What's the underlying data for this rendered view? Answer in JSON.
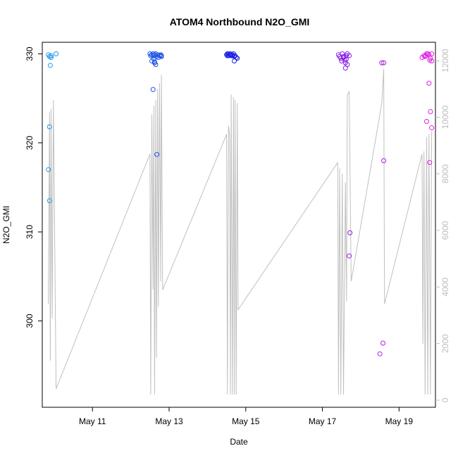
{
  "chart_data": {
    "type": "scatter",
    "title": "ATOM4 Northbound N2O_GMI",
    "xlabel": "Date",
    "ylabel": "N2O_GMI",
    "xlim": [
      9.69,
      19.95
    ],
    "ylim": [
      290.3,
      331.3
    ],
    "x_ticks": [
      {
        "x": 11,
        "label": "May 11"
      },
      {
        "x": 13,
        "label": "May 13"
      },
      {
        "x": 15,
        "label": "May 15"
      },
      {
        "x": 17,
        "label": "May 17"
      },
      {
        "x": 19,
        "label": "May 19"
      }
    ],
    "y_ticks": [
      300,
      310,
      320,
      330
    ],
    "y2lim": [
      -250,
      12650
    ],
    "y2_ticks": [
      0,
      2000,
      4000,
      6000,
      8000,
      10000,
      12000
    ],
    "colors": {
      "axis": "#000000",
      "right_axis": "#bdbdbd",
      "trace": "#c0c0c0",
      "points_start": "#1e9ee8",
      "points_mid": "#1a1ae6",
      "points_end": "#e61ee6"
    },
    "altitude_trace": [
      [
        9.85,
        3400
      ],
      [
        9.88,
        10200
      ],
      [
        9.9,
        1400
      ],
      [
        9.92,
        10300
      ],
      [
        9.95,
        2900
      ],
      [
        9.98,
        10600
      ],
      [
        10.05,
        400
      ],
      [
        12.5,
        8700
      ],
      [
        12.52,
        200
      ],
      [
        12.55,
        10100
      ],
      [
        12.58,
        3900
      ],
      [
        12.6,
        10400
      ],
      [
        12.62,
        200
      ],
      [
        12.65,
        10600
      ],
      [
        12.67,
        1500
      ],
      [
        12.7,
        11000
      ],
      [
        12.72,
        3300
      ],
      [
        12.75,
        11200
      ],
      [
        12.78,
        4200
      ],
      [
        12.8,
        11500
      ],
      [
        12.83,
        3900
      ],
      [
        14.5,
        9400
      ],
      [
        14.52,
        200
      ],
      [
        14.55,
        9700
      ],
      [
        14.58,
        9400
      ],
      [
        14.6,
        200
      ],
      [
        14.62,
        10800
      ],
      [
        14.65,
        200
      ],
      [
        14.68,
        10700
      ],
      [
        14.7,
        200
      ],
      [
        14.72,
        10600
      ],
      [
        14.75,
        200
      ],
      [
        14.78,
        10500
      ],
      [
        14.8,
        3200
      ],
      [
        17.4,
        8400
      ],
      [
        17.42,
        200
      ],
      [
        17.45,
        8200
      ],
      [
        17.48,
        200
      ],
      [
        17.52,
        8000
      ],
      [
        17.55,
        200
      ],
      [
        17.6,
        7700
      ],
      [
        17.63,
        3500
      ],
      [
        17.65,
        10800
      ],
      [
        17.7,
        10900
      ],
      [
        17.75,
        4200
      ],
      [
        18.55,
        10500
      ],
      [
        18.6,
        11700
      ],
      [
        18.62,
        3400
      ],
      [
        19.6,
        8700
      ],
      [
        19.62,
        2000
      ],
      [
        19.65,
        8800
      ],
      [
        19.68,
        200
      ],
      [
        19.72,
        9300
      ],
      [
        19.75,
        200
      ],
      [
        19.78,
        9400
      ],
      [
        19.82,
        200
      ],
      [
        19.85,
        9500
      ]
    ],
    "series": [
      {
        "x": [
          9.85,
          9.88,
          9.9,
          9.92,
          10.05,
          9.88,
          9.85,
          9.88,
          9.92
        ],
        "y": [
          329.9,
          329.7,
          328.7,
          329.8,
          330.0,
          321.8,
          317.0,
          313.5,
          329.6
        ]
      },
      {
        "x": [
          12.5,
          12.52,
          12.55,
          12.58,
          12.6,
          12.62,
          12.65,
          12.67,
          12.7,
          12.75,
          12.78,
          12.8,
          12.6,
          12.62,
          12.55,
          12.72,
          12.65,
          12.8,
          12.58,
          12.68,
          12.62
        ],
        "y": [
          330.0,
          329.8,
          329.9,
          330.0,
          329.8,
          329.9,
          330.0,
          329.7,
          329.9,
          329.8,
          329.9,
          329.8,
          329.4,
          329.1,
          329.2,
          329.6,
          328.8,
          329.7,
          326.0,
          318.7,
          329.0
        ]
      },
      {
        "x": [
          14.5,
          14.52,
          14.55,
          14.58,
          14.6,
          14.62,
          14.65,
          14.68,
          14.7,
          14.72,
          14.75,
          14.78,
          14.6,
          14.7,
          14.65,
          14.55,
          14.52
        ],
        "y": [
          329.9,
          330.0,
          329.8,
          329.9,
          330.0,
          329.8,
          329.9,
          330.0,
          329.7,
          329.8,
          329.6,
          329.5,
          329.9,
          329.2,
          329.8,
          330.0,
          329.8
        ]
      },
      {
        "x": [
          17.42,
          17.45,
          17.48,
          17.5,
          17.52,
          17.55,
          17.58,
          17.6,
          17.62,
          17.65,
          17.7,
          17.55,
          17.6,
          17.65,
          17.62,
          17.72,
          17.7,
          18.55,
          18.6,
          18.5,
          18.58,
          18.6
        ],
        "y": [
          329.9,
          329.7,
          329.5,
          329.2,
          330.0,
          329.6,
          329.3,
          329.0,
          329.8,
          330.0,
          329.8,
          329.7,
          328.4,
          328.8,
          329.4,
          309.9,
          307.3,
          329.0,
          318.0,
          296.3,
          297.5,
          329.0
        ]
      },
      {
        "x": [
          19.6,
          19.65,
          19.68,
          19.72,
          19.75,
          19.78,
          19.82,
          19.85,
          19.7,
          19.75,
          19.8,
          19.85,
          19.78,
          19.82,
          19.72,
          19.8,
          19.85
        ],
        "y": [
          329.6,
          329.8,
          329.7,
          330.0,
          330.0,
          329.9,
          329.5,
          329.2,
          329.8,
          330.0,
          329.3,
          330.0,
          326.7,
          323.5,
          322.4,
          317.8,
          321.7
        ]
      }
    ]
  }
}
